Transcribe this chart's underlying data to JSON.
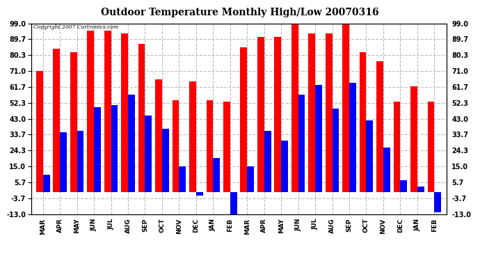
{
  "title": "Outdoor Temperature Monthly High/Low 20070316",
  "copyright_text": "Copyright 2007 Cartronics.com",
  "months": [
    "MAR",
    "APR",
    "MAY",
    "JUN",
    "JUL",
    "AUG",
    "SEP",
    "OCT",
    "NOV",
    "DEC",
    "JAN",
    "FEB",
    "MAR",
    "APR",
    "MAY",
    "JUN",
    "JUL",
    "AUG",
    "SEP",
    "OCT",
    "NOV",
    "DEC",
    "JAN",
    "FEB"
  ],
  "highs": [
    71,
    84,
    82,
    95,
    95,
    93,
    87,
    66,
    54,
    65,
    54,
    53,
    85,
    91,
    91,
    99,
    93,
    93,
    99,
    82,
    77,
    53,
    62,
    53
  ],
  "lows": [
    10,
    35,
    36,
    50,
    51,
    57,
    45,
    37,
    15,
    -2,
    20,
    -14,
    15,
    36,
    30,
    57,
    63,
    49,
    64,
    42,
    26,
    7,
    3,
    -12
  ],
  "bar_color_high": "#ff0000",
  "bar_color_low": "#0000ff",
  "ytick_vals": [
    -13.0,
    -3.7,
    5.7,
    15.0,
    24.3,
    33.7,
    43.0,
    52.3,
    61.7,
    71.0,
    80.3,
    89.7,
    99.0
  ],
  "ytick_labels": [
    "-13.0",
    "-3.7",
    "5.7",
    "15.0",
    "24.3",
    "33.7",
    "43.0",
    "52.3",
    "61.7",
    "71.0",
    "80.3",
    "89.7",
    "99.0"
  ],
  "ymin": -13.0,
  "ymax": 99.0,
  "background_color": "#ffffff",
  "grid_color": "#bbbbbb"
}
